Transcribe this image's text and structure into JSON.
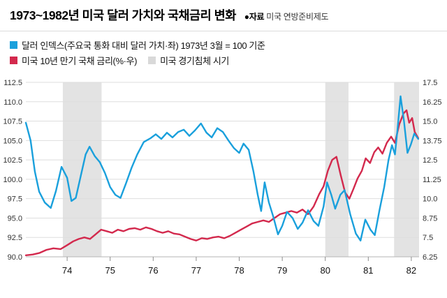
{
  "header": {
    "title": "1973~1982년 미국 달러 가치와 국채금리 변화",
    "source_label": "●자료",
    "source_text": "미국 연방준비제도"
  },
  "legend": {
    "dollar": "달러 인덱스(주요국 통화 대비 달러 가치·좌) 1973년 3월 = 100 기준",
    "bond": "미국 10년 만기 국채 금리(%·우)",
    "recession": "미국 경기침체 시기"
  },
  "colors": {
    "dollar_line": "#1aa0dc",
    "bond_line": "#d3294d",
    "recession_band": "#e3e3e3",
    "gridline": "#dedede",
    "axis_line": "#b5b5b5",
    "tick": "#8c8c8c",
    "axis_text": "#333333",
    "x_label_text": "#111111"
  },
  "chart_data": {
    "type": "line",
    "title": "1973~1982년 미국 달러 가치와 국채금리 변화",
    "x_unit": "year",
    "x_range": [
      1973.04,
      1982.18
    ],
    "grid": true,
    "x_ticks": [
      {
        "label": "74",
        "year": 1974
      },
      {
        "label": "75",
        "year": 1975
      },
      {
        "label": "76",
        "year": 1976
      },
      {
        "label": "77",
        "year": 1977
      },
      {
        "label": "78",
        "year": 1978
      },
      {
        "label": "79",
        "year": 1979
      },
      {
        "label": "80",
        "year": 1980
      },
      {
        "label": "81",
        "year": 1981
      },
      {
        "label": "82",
        "year": 1982
      }
    ],
    "left_axis": {
      "label": "달러 인덱스(1973년 3월 = 100)",
      "range": [
        90,
        112.5
      ],
      "ticks": [
        "112.5",
        "110.0",
        "107.5",
        "105.0",
        "102.5",
        "100.0",
        "97.5",
        "95.0",
        "92.5",
        "90.0"
      ]
    },
    "right_axis": {
      "label": "미국 10년 만기 국채 금리(%)",
      "range": [
        6.25,
        17.5
      ],
      "ticks": [
        "17.5",
        "16.25",
        "15.0",
        "13.75",
        "12.5",
        "11.25",
        "10.0",
        "8.75",
        "7.5",
        "6.25"
      ]
    },
    "recession_bands": [
      [
        1973.9,
        1974.8
      ],
      [
        1980.0,
        1980.54
      ],
      [
        1981.6,
        1982.18
      ]
    ],
    "series": [
      {
        "id": "dollar-index-line",
        "name": "달러 인덱스(주요국 통화 대비 달러 가치·좌)",
        "axis": "left",
        "color": "#1aa0dc",
        "points": [
          [
            1973.04,
            107.3
          ],
          [
            1973.15,
            105.0
          ],
          [
            1973.25,
            101.0
          ],
          [
            1973.35,
            98.4
          ],
          [
            1973.48,
            97.0
          ],
          [
            1973.62,
            96.3
          ],
          [
            1973.74,
            98.5
          ],
          [
            1973.87,
            101.6
          ],
          [
            1974.0,
            100.2
          ],
          [
            1974.1,
            97.2
          ],
          [
            1974.2,
            97.6
          ],
          [
            1974.32,
            100.5
          ],
          [
            1974.43,
            103.2
          ],
          [
            1974.52,
            104.2
          ],
          [
            1974.64,
            103.0
          ],
          [
            1974.76,
            102.2
          ],
          [
            1974.88,
            100.8
          ],
          [
            1975.0,
            99.0
          ],
          [
            1975.12,
            98.0
          ],
          [
            1975.24,
            97.6
          ],
          [
            1975.37,
            99.5
          ],
          [
            1975.5,
            101.5
          ],
          [
            1975.63,
            103.2
          ],
          [
            1975.78,
            104.8
          ],
          [
            1975.94,
            105.3
          ],
          [
            1976.06,
            105.8
          ],
          [
            1976.19,
            105.2
          ],
          [
            1976.32,
            106.0
          ],
          [
            1976.45,
            105.4
          ],
          [
            1976.58,
            106.1
          ],
          [
            1976.71,
            106.4
          ],
          [
            1976.84,
            105.6
          ],
          [
            1976.97,
            106.3
          ],
          [
            1977.11,
            107.2
          ],
          [
            1977.24,
            106.0
          ],
          [
            1977.36,
            105.4
          ],
          [
            1977.49,
            106.6
          ],
          [
            1977.62,
            106.1
          ],
          [
            1977.75,
            105.0
          ],
          [
            1977.88,
            104.0
          ],
          [
            1978.0,
            103.4
          ],
          [
            1978.1,
            104.6
          ],
          [
            1978.22,
            103.8
          ],
          [
            1978.33,
            101.0
          ],
          [
            1978.43,
            98.0
          ],
          [
            1978.51,
            95.9
          ],
          [
            1978.59,
            99.6
          ],
          [
            1978.69,
            97.0
          ],
          [
            1978.79,
            95.2
          ],
          [
            1978.9,
            92.9
          ],
          [
            1979.0,
            94.0
          ],
          [
            1979.11,
            95.8
          ],
          [
            1979.24,
            95.0
          ],
          [
            1979.36,
            93.6
          ],
          [
            1979.47,
            94.4
          ],
          [
            1979.6,
            96.0
          ],
          [
            1979.73,
            94.6
          ],
          [
            1979.84,
            94.0
          ],
          [
            1979.96,
            96.5
          ],
          [
            1980.04,
            99.6
          ],
          [
            1980.14,
            98.0
          ],
          [
            1980.23,
            96.2
          ],
          [
            1980.35,
            98.0
          ],
          [
            1980.45,
            98.6
          ],
          [
            1980.58,
            95.5
          ],
          [
            1980.71,
            93.0
          ],
          [
            1980.82,
            92.1
          ],
          [
            1980.93,
            94.8
          ],
          [
            1981.05,
            93.5
          ],
          [
            1981.15,
            92.8
          ],
          [
            1981.26,
            96.0
          ],
          [
            1981.37,
            99.0
          ],
          [
            1981.47,
            102.5
          ],
          [
            1981.55,
            104.4
          ],
          [
            1981.62,
            103.2
          ],
          [
            1981.68,
            106.5
          ],
          [
            1981.75,
            110.7
          ],
          [
            1981.83,
            107.5
          ],
          [
            1981.91,
            103.4
          ],
          [
            1981.99,
            104.5
          ],
          [
            1982.07,
            105.9
          ],
          [
            1982.16,
            105.2
          ]
        ]
      },
      {
        "id": "treasury-yield-line",
        "name": "미국 10년 만기 국채 금리(%·우)",
        "axis": "right",
        "color": "#d3294d",
        "points": [
          [
            1973.04,
            6.35
          ],
          [
            1973.2,
            6.4
          ],
          [
            1973.36,
            6.5
          ],
          [
            1973.52,
            6.7
          ],
          [
            1973.68,
            6.8
          ],
          [
            1973.85,
            6.75
          ],
          [
            1974.0,
            7.0
          ],
          [
            1974.14,
            7.25
          ],
          [
            1974.27,
            7.4
          ],
          [
            1974.4,
            7.5
          ],
          [
            1974.53,
            7.4
          ],
          [
            1974.66,
            7.7
          ],
          [
            1974.79,
            8.0
          ],
          [
            1974.92,
            7.9
          ],
          [
            1975.05,
            7.8
          ],
          [
            1975.18,
            8.0
          ],
          [
            1975.31,
            7.9
          ],
          [
            1975.44,
            8.05
          ],
          [
            1975.57,
            8.1
          ],
          [
            1975.7,
            8.0
          ],
          [
            1975.83,
            8.15
          ],
          [
            1975.96,
            8.05
          ],
          [
            1976.09,
            7.9
          ],
          [
            1976.22,
            7.8
          ],
          [
            1976.35,
            7.9
          ],
          [
            1976.48,
            7.75
          ],
          [
            1976.61,
            7.7
          ],
          [
            1976.74,
            7.55
          ],
          [
            1976.87,
            7.4
          ],
          [
            1977.0,
            7.3
          ],
          [
            1977.13,
            7.45
          ],
          [
            1977.26,
            7.4
          ],
          [
            1977.39,
            7.5
          ],
          [
            1977.52,
            7.55
          ],
          [
            1977.65,
            7.45
          ],
          [
            1977.78,
            7.6
          ],
          [
            1977.91,
            7.8
          ],
          [
            1978.04,
            8.0
          ],
          [
            1978.17,
            8.2
          ],
          [
            1978.3,
            8.4
          ],
          [
            1978.43,
            8.5
          ],
          [
            1978.56,
            8.6
          ],
          [
            1978.69,
            8.5
          ],
          [
            1978.82,
            8.75
          ],
          [
            1978.95,
            9.0
          ],
          [
            1979.08,
            9.1
          ],
          [
            1979.21,
            9.2
          ],
          [
            1979.34,
            9.1
          ],
          [
            1979.47,
            9.3
          ],
          [
            1979.6,
            9.0
          ],
          [
            1979.73,
            9.5
          ],
          [
            1979.86,
            10.3
          ],
          [
            1979.96,
            10.8
          ],
          [
            1980.06,
            11.8
          ],
          [
            1980.16,
            12.5
          ],
          [
            1980.26,
            12.7
          ],
          [
            1980.36,
            11.5
          ],
          [
            1980.46,
            10.4
          ],
          [
            1980.56,
            10.0
          ],
          [
            1980.65,
            10.6
          ],
          [
            1980.75,
            11.3
          ],
          [
            1980.85,
            11.8
          ],
          [
            1980.94,
            12.6
          ],
          [
            1981.04,
            12.3
          ],
          [
            1981.14,
            13.0
          ],
          [
            1981.23,
            13.3
          ],
          [
            1981.33,
            12.9
          ],
          [
            1981.43,
            13.6
          ],
          [
            1981.53,
            14.0
          ],
          [
            1981.62,
            13.6
          ],
          [
            1981.72,
            14.8
          ],
          [
            1981.82,
            15.5
          ],
          [
            1981.89,
            15.7
          ],
          [
            1981.95,
            14.9
          ],
          [
            1982.02,
            15.2
          ],
          [
            1982.08,
            14.3
          ],
          [
            1982.16,
            13.9
          ]
        ]
      }
    ]
  }
}
